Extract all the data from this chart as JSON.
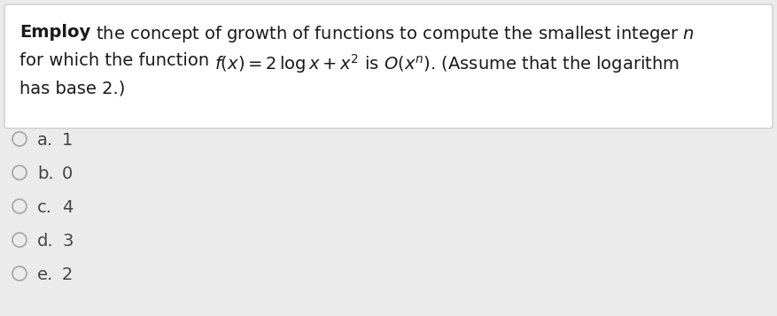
{
  "background_color": "#ebebeb",
  "question_box_color": "#ffffff",
  "question_box_border": "#cccccc",
  "options": [
    {
      "label": "a.",
      "value": "1"
    },
    {
      "label": "b.",
      "value": "0"
    },
    {
      "label": "c.",
      "value": "4"
    },
    {
      "label": "d.",
      "value": "3"
    },
    {
      "label": "e.",
      "value": "2"
    }
  ],
  "text_color": "#1a1a1a",
  "option_text_color": "#444444",
  "circle_edge_color": "#aaaaaa",
  "font_size_question": 14,
  "font_size_options": 14,
  "fig_width": 8.77,
  "fig_height": 3.57
}
